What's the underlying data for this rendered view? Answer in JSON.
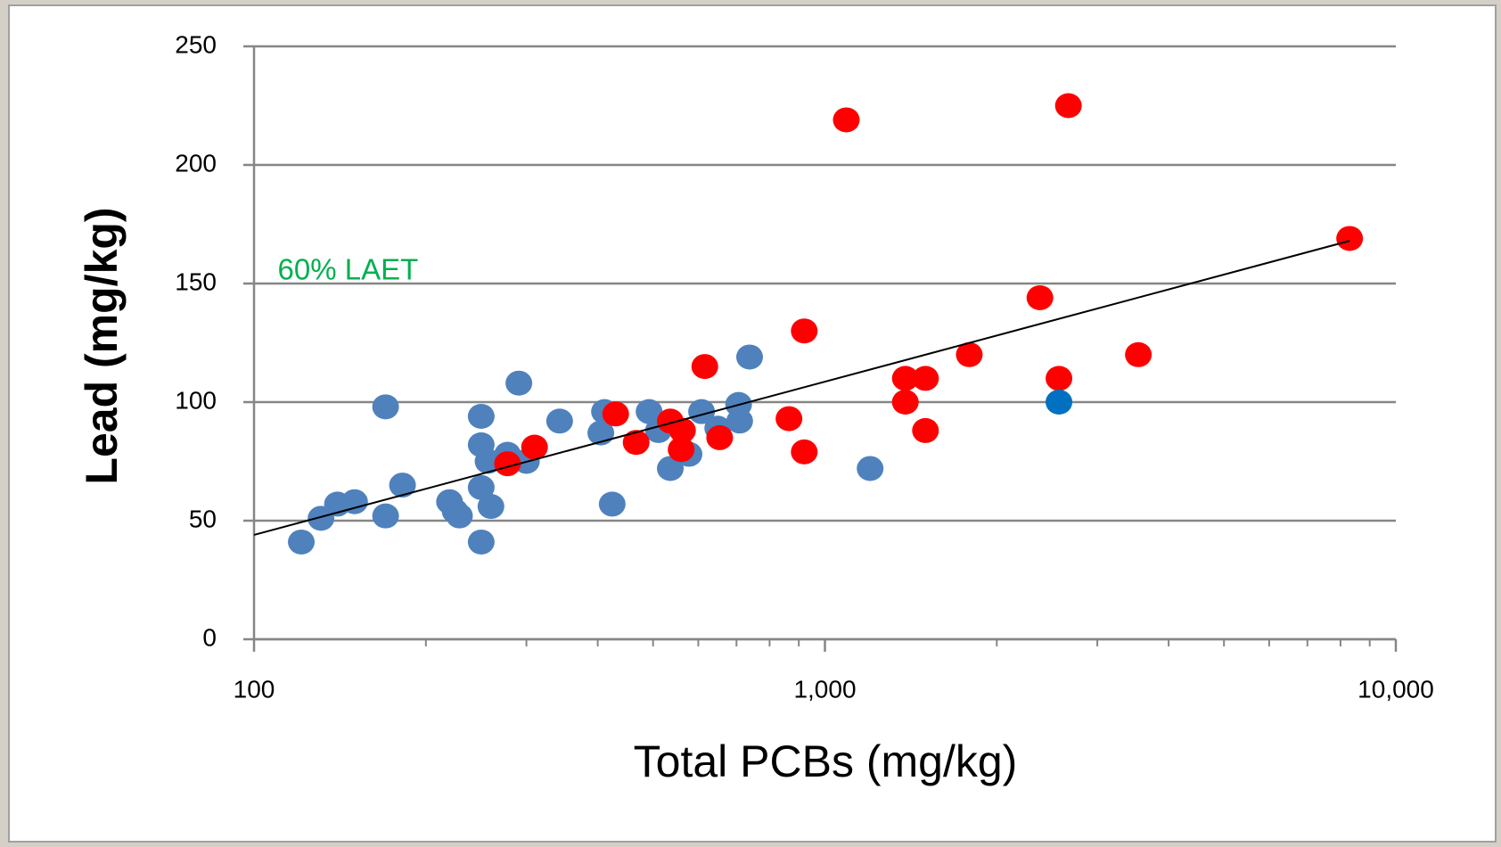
{
  "chart_data": {
    "type": "scatter",
    "xlabel": "Total PCBs (mg/kg)",
    "ylabel": "Lead (mg/kg)",
    "annotation": {
      "text": "60% LAET",
      "x": 110,
      "y": 155,
      "color": "#00b050"
    },
    "xscale": "log",
    "xlim": [
      100,
      10000
    ],
    "xticks": [
      100,
      {
        "value": 1000,
        "label": "1,000"
      },
      {
        "value": 10000,
        "label": "10,000"
      }
    ],
    "xminorticks": [
      200,
      300,
      400,
      500,
      600,
      700,
      800,
      900,
      2000,
      3000,
      4000,
      5000,
      6000,
      7000,
      8000,
      9000
    ],
    "ylim": [
      0,
      250
    ],
    "yticks": [
      0,
      50,
      100,
      150,
      200,
      250
    ],
    "grid": true,
    "series": [
      {
        "color": "#4f81bd",
        "x": [
          121,
          131,
          140,
          150,
          170,
          170,
          182,
          220,
          225,
          229,
          250,
          250,
          250,
          250,
          260,
          257,
          278,
          300,
          291,
          343,
          405,
          411,
          424,
          492,
          511,
          536,
          578,
          608,
          649,
          706,
          709,
          738,
          1200
        ],
        "values": [
          41,
          51,
          57,
          58,
          98,
          52,
          65,
          58,
          54,
          52,
          94,
          82,
          64,
          41,
          56,
          75,
          78,
          75,
          108,
          92,
          87,
          96,
          57,
          96,
          88,
          72,
          78,
          96,
          89,
          99,
          92,
          119,
          72
        ]
      },
      {
        "color": "#ff0000",
        "x": [
          278,
          310,
          430,
          467,
          536,
          563,
          560,
          616,
          654,
          865,
          920,
          920,
          1090,
          1383,
          1383,
          1500,
          1500,
          1790,
          2380,
          2570,
          2670,
          3540,
          8300
        ],
        "values": [
          74,
          81,
          95,
          83,
          92,
          88,
          80,
          115,
          85,
          93,
          79,
          130,
          219,
          100,
          110,
          110,
          88,
          120,
          144,
          110,
          225,
          120,
          169
        ]
      },
      {
        "color": "#0070c0",
        "x": [
          2570
        ],
        "values": [
          100
        ]
      }
    ],
    "trendline": {
      "color": "#000000",
      "x": [
        100,
        8300
      ],
      "values": [
        44,
        168
      ]
    }
  }
}
